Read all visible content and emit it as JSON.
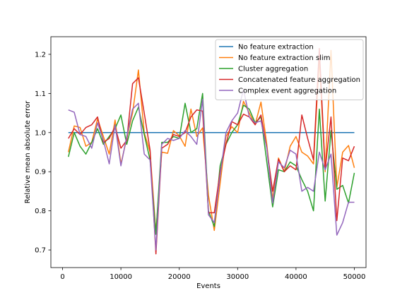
{
  "chart_data": {
    "type": "line",
    "title": "",
    "xlabel": "Events",
    "ylabel": "Relative mean absolute error",
    "xlim": [
      -2000,
      52000
    ],
    "ylim": [
      0.655,
      1.245
    ],
    "xticks": [
      0,
      10000,
      20000,
      30000,
      40000,
      50000
    ],
    "xtick_labels": [
      "0",
      "10000",
      "20000",
      "30000",
      "40000",
      "50000"
    ],
    "yticks": [
      0.7,
      0.8,
      0.9,
      1.0,
      1.1,
      1.2
    ],
    "ytick_labels": [
      "0.7",
      "0.8",
      "0.9",
      "1.0",
      "1.1",
      "1.2"
    ],
    "grid": false,
    "legend_position": "top-right",
    "x": [
      1000,
      2000,
      3000,
      4000,
      5000,
      6000,
      7000,
      8000,
      9000,
      10000,
      11000,
      12000,
      13000,
      14000,
      15000,
      16000,
      17000,
      18000,
      19000,
      20000,
      21000,
      22000,
      23000,
      24000,
      25000,
      26000,
      27000,
      28000,
      29000,
      30000,
      31000,
      32000,
      33000,
      34000,
      35000,
      36000,
      37000,
      38000,
      39000,
      40000,
      41000,
      42000,
      43000,
      44000,
      45000,
      46000,
      47000,
      48000,
      49000,
      50000
    ],
    "series": [
      {
        "name": "No feature extraction",
        "color": "#1f77b4",
        "values": [
          1.0,
          1.0,
          1.0,
          1.0,
          1.0,
          1.0,
          1.0,
          1.0,
          1.0,
          1.0,
          1.0,
          1.0,
          1.0,
          1.0,
          1.0,
          1.0,
          1.0,
          1.0,
          1.0,
          1.0,
          1.0,
          1.0,
          1.0,
          1.0,
          1.0,
          1.0,
          1.0,
          1.0,
          1.0,
          1.0,
          1.0,
          1.0,
          1.0,
          1.0,
          1.0,
          1.0,
          1.0,
          1.0,
          1.0,
          1.0,
          1.0,
          1.0,
          1.0,
          1.0,
          1.0,
          1.0,
          1.0,
          1.0,
          1.0,
          1.0
        ]
      },
      {
        "name": "No feature extraction slim",
        "color": "#ff7f0e",
        "values": [
          0.95,
          1.017,
          1.013,
          0.965,
          0.975,
          1.035,
          0.99,
          0.945,
          1.032,
          0.92,
          0.985,
          1.05,
          1.16,
          1.0,
          0.95,
          0.745,
          0.95,
          0.947,
          1.005,
          0.992,
          0.965,
          1.06,
          0.99,
          1.012,
          0.84,
          0.75,
          0.87,
          0.99,
          1.015,
          1.0,
          1.08,
          1.05,
          1.02,
          1.078,
          0.97,
          0.83,
          0.935,
          0.9,
          0.965,
          0.99,
          0.95,
          0.94,
          0.92,
          1.19,
          0.9,
          1.21,
          0.86,
          0.95,
          0.967,
          0.91
        ]
      },
      {
        "name": "Cluster aggregation",
        "color": "#2ca02c",
        "values": [
          0.938,
          1.0,
          0.965,
          0.945,
          0.975,
          1.01,
          0.97,
          0.99,
          1.01,
          1.045,
          0.97,
          1.03,
          1.065,
          0.995,
          0.93,
          0.74,
          0.975,
          0.975,
          0.99,
          0.985,
          1.075,
          1.0,
          1.01,
          1.1,
          0.8,
          0.76,
          0.915,
          0.97,
          1.0,
          1.02,
          1.07,
          1.06,
          1.025,
          1.04,
          0.925,
          0.81,
          0.905,
          0.9,
          0.925,
          0.915,
          0.88,
          0.85,
          0.8,
          1.06,
          0.825,
          1.005,
          0.855,
          0.865,
          0.82,
          0.897
        ]
      },
      {
        "name": "Concatenated feature aggregation",
        "color": "#d62728",
        "values": [
          0.985,
          1.01,
          0.995,
          1.013,
          1.02,
          1.04,
          0.975,
          0.985,
          1.015,
          0.96,
          0.98,
          1.125,
          1.14,
          1.05,
          0.955,
          0.69,
          0.96,
          0.97,
          0.995,
          0.99,
          1.0,
          1.04,
          1.058,
          1.055,
          0.795,
          0.795,
          0.9,
          0.97,
          1.028,
          1.02,
          1.047,
          1.04,
          1.02,
          1.045,
          0.96,
          0.85,
          0.932,
          0.9,
          0.915,
          0.905,
          1.045,
          0.985,
          0.93,
          1.215,
          0.905,
          1.04,
          0.775,
          0.935,
          0.928,
          0.965
        ]
      },
      {
        "name": "Complex event aggregation",
        "color": "#9467bd",
        "values": [
          1.058,
          1.052,
          0.995,
          0.99,
          0.96,
          1.025,
          0.98,
          0.92,
          1.02,
          0.915,
          0.99,
          1.06,
          1.075,
          0.945,
          0.93,
          0.7,
          0.97,
          0.985,
          0.98,
          0.985,
          1.005,
          0.99,
          0.97,
          1.085,
          0.79,
          0.77,
          0.89,
          1.0,
          1.03,
          1.05,
          1.11,
          1.04,
          1.025,
          1.03,
          0.96,
          0.82,
          0.925,
          0.91,
          0.955,
          0.945,
          0.85,
          0.86,
          0.85,
          0.95,
          0.905,
          0.945,
          0.738,
          0.77,
          0.822,
          0.822
        ]
      }
    ]
  }
}
